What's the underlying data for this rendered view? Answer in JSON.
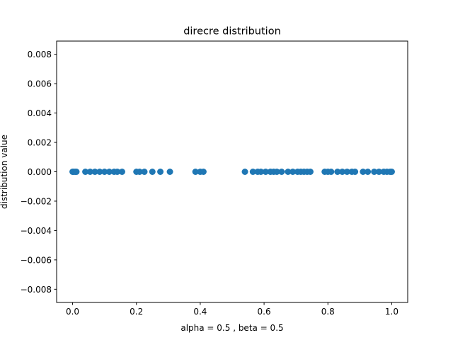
{
  "chart_data": {
    "type": "scatter",
    "title": "direcre distribution",
    "xlabel": "alpha = 0.5 , beta = 0.5",
    "ylabel": "distribution value",
    "xlim": [
      -0.05,
      1.05
    ],
    "ylim": [
      -0.0089,
      0.0089
    ],
    "xticks": [
      0.0,
      0.2,
      0.4,
      0.6,
      0.8,
      1.0
    ],
    "xtick_labels": [
      "0.0",
      "0.2",
      "0.4",
      "0.6",
      "0.8",
      "1.0"
    ],
    "yticks": [
      0.008,
      0.006,
      0.004,
      0.002,
      0.0,
      -0.002,
      -0.004,
      -0.006,
      -0.008
    ],
    "ytick_labels": [
      "0.008",
      "0.006",
      "0.004",
      "0.002",
      "0.000",
      "−0.002",
      "−0.004",
      "−0.006",
      "−0.008"
    ],
    "grid": false,
    "marker_color": "#1f77b4",
    "series": [
      {
        "x": [
          0.0,
          0.003,
          0.008,
          0.012,
          0.04,
          0.055,
          0.07,
          0.085,
          0.1,
          0.115,
          0.13,
          0.14,
          0.155,
          0.2,
          0.21,
          0.225,
          0.25,
          0.275,
          0.305,
          0.385,
          0.4,
          0.41,
          0.54,
          0.565,
          0.58,
          0.59,
          0.605,
          0.62,
          0.63,
          0.64,
          0.655,
          0.675,
          0.69,
          0.705,
          0.715,
          0.725,
          0.735,
          0.745,
          0.79,
          0.8,
          0.81,
          0.83,
          0.845,
          0.86,
          0.875,
          0.885,
          0.91,
          0.925,
          0.945,
          0.96,
          0.975,
          0.985,
          0.995,
          1.0
        ],
        "y": [
          0,
          0,
          0,
          0,
          0,
          0,
          0,
          0,
          0,
          0,
          0,
          0,
          0,
          0,
          0,
          0,
          0,
          0,
          0,
          0,
          0,
          0,
          0,
          0,
          0,
          0,
          0,
          0,
          0,
          0,
          0,
          0,
          0,
          0,
          0,
          0,
          0,
          0,
          0,
          0,
          0,
          0,
          0,
          0,
          0,
          0,
          0,
          0,
          0,
          0,
          0,
          0,
          0,
          0
        ]
      }
    ]
  }
}
